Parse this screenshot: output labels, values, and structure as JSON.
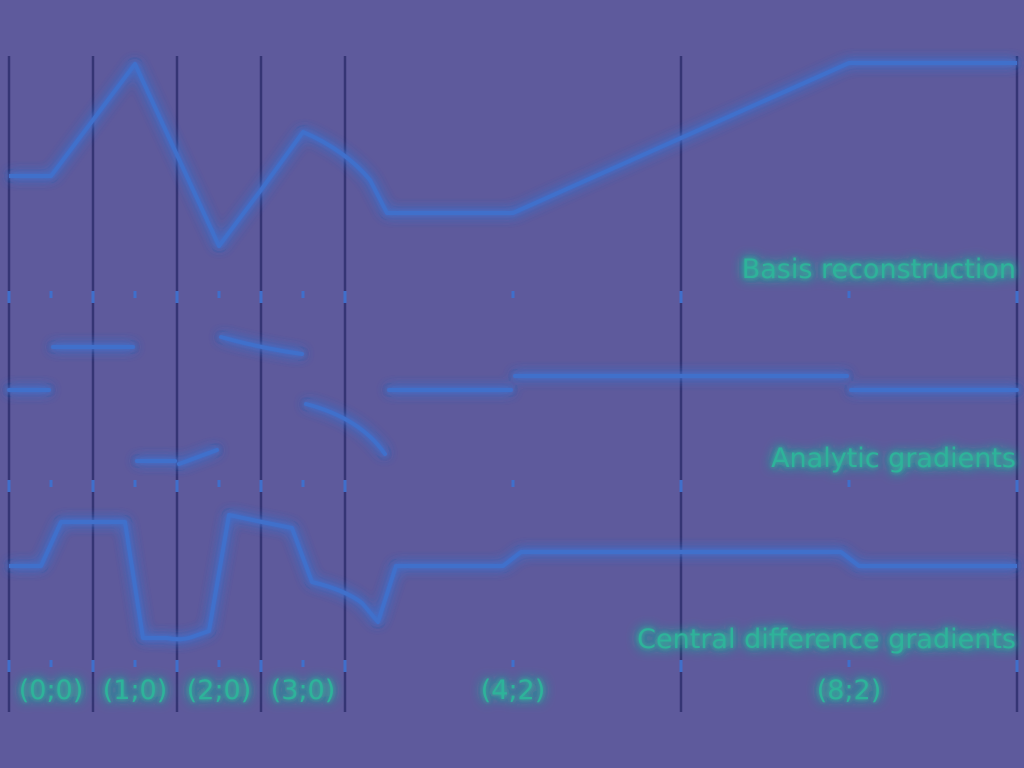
{
  "panels": {
    "reconstruction": {
      "label": "Basis reconstruction"
    },
    "analytic": {
      "label": "Analytic gradients"
    },
    "central": {
      "label": "Central difference gradients"
    }
  },
  "segment_labels": [
    "(0;0)",
    "(1;0)",
    "(2;0)",
    "(3;0)",
    "(4;2)",
    "(8;2)"
  ],
  "colors": {
    "background": "#5e5a9c",
    "line": "#3f6fcb",
    "glow": "#3cc8ff",
    "text": "#2fb39a",
    "text_glow": "#8cff7a",
    "grid": "#2e2f6e"
  }
}
